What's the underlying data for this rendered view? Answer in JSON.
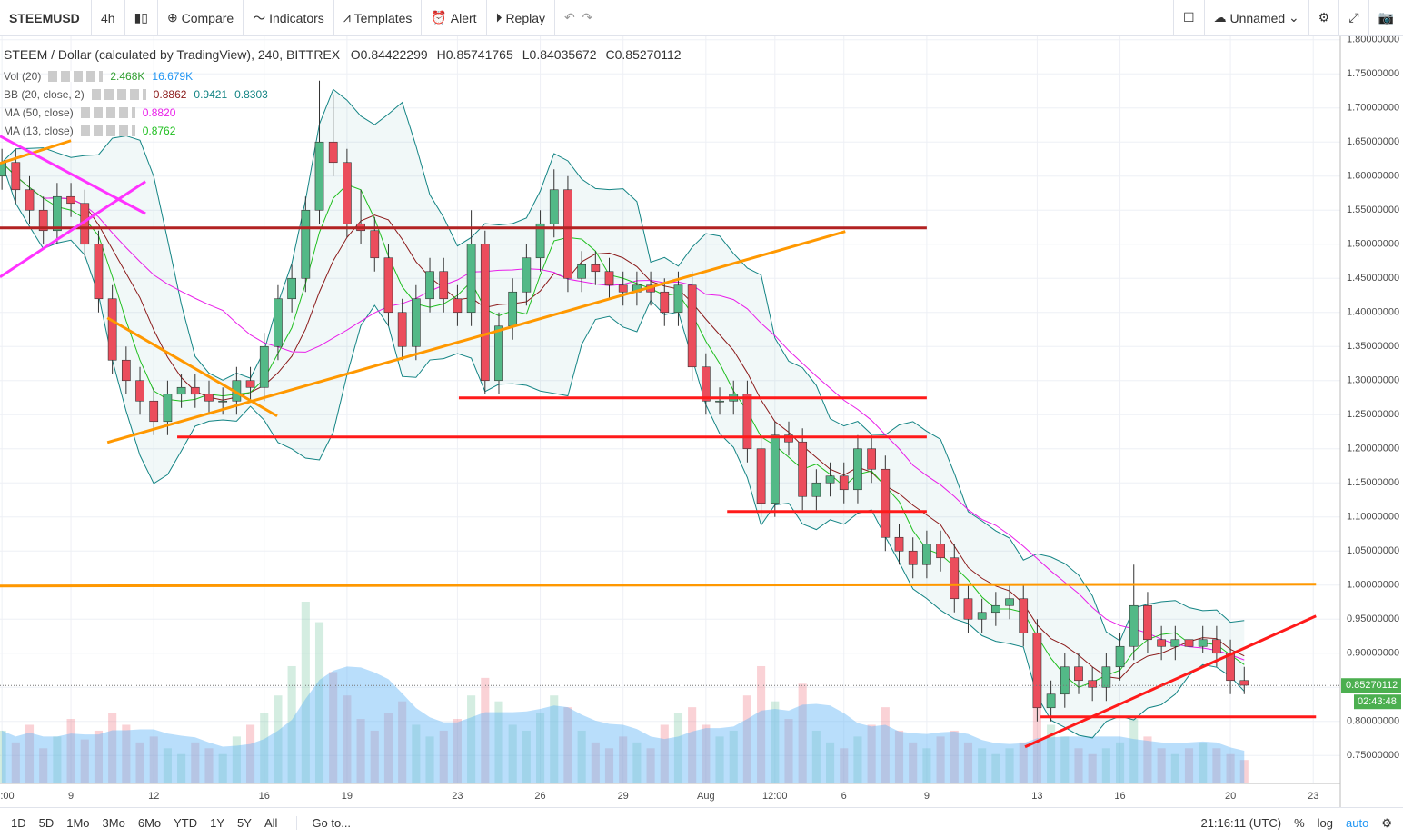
{
  "toolbar": {
    "symbol": "STEEMUSD",
    "interval": "4h",
    "buttons": [
      "Compare",
      "Indicators",
      "Templates",
      "Alert",
      "Replay"
    ],
    "layout_name": "Unnamed"
  },
  "legend": {
    "title": "STEEM / Dollar (calculated by TradingView), 240, BITTREX",
    "ohlc": [
      {
        "label": "O",
        "value": 0.84422299
      },
      {
        "label": "H",
        "value": 0.85741765
      },
      {
        "label": "L",
        "value": 0.84035672
      },
      {
        "label": "C",
        "value": 0.85270112
      }
    ],
    "indicators": [
      {
        "name": "Vol (20)",
        "values": [
          "2.468K",
          "16.679K"
        ],
        "colors": [
          "#2e9e2e",
          "#2196f3"
        ]
      },
      {
        "name": "BB (20, close, 2)",
        "values": [
          0.8862,
          0.9421,
          0.8303
        ],
        "colors": [
          "#8b1a1a",
          "#138484",
          "#138484"
        ]
      },
      {
        "name": "MA (50, close)",
        "values": [
          "0.8820"
        ],
        "colors": [
          "#e91ee9"
        ]
      },
      {
        "name": "MA (13, close)",
        "values": [
          0.8762
        ],
        "colors": [
          "#1fbf1f"
        ]
      }
    ]
  },
  "chart_data": {
    "type": "candlestick",
    "x": [
      6.5,
      7,
      7.5,
      8,
      8.5,
      9,
      9.5,
      10,
      10.5,
      11,
      11.5,
      12,
      12.5,
      13,
      13.5,
      14,
      14.5,
      15,
      15.5,
      16,
      16.5,
      17,
      17.5,
      18,
      18.5,
      19,
      19.5,
      20,
      20.5,
      21,
      21.5,
      22,
      22.5,
      23,
      23.5,
      24,
      24.5,
      25,
      25.5,
      26,
      26.5,
      27,
      27.5,
      28,
      28.5,
      29,
      29.5,
      30,
      30.5,
      31,
      31.5,
      32,
      32.5,
      33,
      33.5,
      34,
      34.5,
      35,
      35.5,
      36,
      36.5,
      37,
      37.5,
      38,
      38.5,
      39,
      39.5,
      40,
      40.5,
      41,
      41.5,
      42,
      42.5,
      43,
      43.5,
      44,
      44.5,
      45,
      45.5,
      46,
      46.5,
      47,
      47.5,
      48,
      48.5,
      49,
      49.5,
      50,
      50.5,
      51,
      51.5
    ],
    "open": [
      1.6,
      1.62,
      1.58,
      1.55,
      1.52,
      1.57,
      1.56,
      1.5,
      1.42,
      1.33,
      1.3,
      1.27,
      1.24,
      1.28,
      1.29,
      1.28,
      1.27,
      1.27,
      1.3,
      1.29,
      1.35,
      1.42,
      1.45,
      1.55,
      1.65,
      1.62,
      1.53,
      1.52,
      1.48,
      1.4,
      1.35,
      1.42,
      1.46,
      1.42,
      1.4,
      1.5,
      1.3,
      1.38,
      1.43,
      1.48,
      1.53,
      1.58,
      1.45,
      1.47,
      1.46,
      1.44,
      1.43,
      1.44,
      1.43,
      1.4,
      1.44,
      1.32,
      1.27,
      1.27,
      1.28,
      1.2,
      1.12,
      1.22,
      1.21,
      1.13,
      1.15,
      1.16,
      1.14,
      1.2,
      1.17,
      1.07,
      1.05,
      1.03,
      1.06,
      1.04,
      0.98,
      0.95,
      0.96,
      0.97,
      0.98,
      0.93,
      0.82,
      0.84,
      0.88,
      0.86,
      0.85,
      0.88,
      0.91,
      0.97,
      0.92,
      0.91,
      0.92,
      0.91,
      0.92,
      0.9,
      0.86
    ],
    "high": [
      1.64,
      1.64,
      1.6,
      1.57,
      1.59,
      1.59,
      1.58,
      1.52,
      1.44,
      1.35,
      1.32,
      1.29,
      1.3,
      1.31,
      1.31,
      1.3,
      1.29,
      1.32,
      1.32,
      1.37,
      1.44,
      1.47,
      1.57,
      1.74,
      1.72,
      1.64,
      1.58,
      1.54,
      1.5,
      1.42,
      1.44,
      1.48,
      1.48,
      1.44,
      1.55,
      1.52,
      1.4,
      1.45,
      1.5,
      1.55,
      1.61,
      1.6,
      1.49,
      1.49,
      1.48,
      1.46,
      1.46,
      1.46,
      1.45,
      1.46,
      1.46,
      1.34,
      1.29,
      1.3,
      1.3,
      1.22,
      1.24,
      1.24,
      1.23,
      1.17,
      1.18,
      1.18,
      1.22,
      1.22,
      1.19,
      1.09,
      1.07,
      1.08,
      1.08,
      1.06,
      1.0,
      0.98,
      0.99,
      1.0,
      1.0,
      0.95,
      0.86,
      0.9,
      0.9,
      0.88,
      0.9,
      0.93,
      1.03,
      0.99,
      0.94,
      0.94,
      0.95,
      0.94,
      0.94,
      0.92,
      0.88
    ],
    "low": [
      1.58,
      1.56,
      1.53,
      1.5,
      1.5,
      1.54,
      1.48,
      1.4,
      1.31,
      1.28,
      1.25,
      1.22,
      1.22,
      1.26,
      1.26,
      1.25,
      1.25,
      1.25,
      1.27,
      1.27,
      1.33,
      1.4,
      1.43,
      1.53,
      1.6,
      1.51,
      1.5,
      1.46,
      1.38,
      1.33,
      1.33,
      1.4,
      1.4,
      1.38,
      1.38,
      1.28,
      1.28,
      1.36,
      1.41,
      1.46,
      1.51,
      1.43,
      1.43,
      1.44,
      1.42,
      1.41,
      1.41,
      1.41,
      1.38,
      1.38,
      1.3,
      1.25,
      1.25,
      1.25,
      1.18,
      1.1,
      1.1,
      1.19,
      1.11,
      1.11,
      1.13,
      1.12,
      1.12,
      1.15,
      1.05,
      1.03,
      1.01,
      1.01,
      1.02,
      0.96,
      0.93,
      0.93,
      0.94,
      0.95,
      0.91,
      0.8,
      0.8,
      0.82,
      0.84,
      0.83,
      0.83,
      0.86,
      0.89,
      0.9,
      0.89,
      0.89,
      0.89,
      0.9,
      0.88,
      0.84,
      0.84
    ],
    "close": [
      1.62,
      1.58,
      1.55,
      1.52,
      1.57,
      1.56,
      1.5,
      1.42,
      1.33,
      1.3,
      1.27,
      1.24,
      1.28,
      1.29,
      1.28,
      1.27,
      1.27,
      1.3,
      1.29,
      1.35,
      1.42,
      1.45,
      1.55,
      1.65,
      1.62,
      1.53,
      1.52,
      1.48,
      1.4,
      1.35,
      1.42,
      1.46,
      1.42,
      1.4,
      1.5,
      1.3,
      1.38,
      1.43,
      1.48,
      1.53,
      1.58,
      1.45,
      1.47,
      1.46,
      1.44,
      1.43,
      1.44,
      1.43,
      1.4,
      1.44,
      1.32,
      1.27,
      1.27,
      1.28,
      1.2,
      1.12,
      1.22,
      1.21,
      1.13,
      1.15,
      1.16,
      1.14,
      1.2,
      1.17,
      1.07,
      1.05,
      1.03,
      1.06,
      1.04,
      0.98,
      0.95,
      0.96,
      0.97,
      0.98,
      0.93,
      0.82,
      0.84,
      0.88,
      0.86,
      0.85,
      0.88,
      0.91,
      0.97,
      0.92,
      0.91,
      0.92,
      0.91,
      0.92,
      0.9,
      0.86,
      0.853
    ],
    "volume": [
      18,
      14,
      20,
      12,
      16,
      22,
      15,
      18,
      24,
      20,
      14,
      16,
      12,
      10,
      14,
      12,
      10,
      16,
      20,
      24,
      30,
      40,
      62,
      55,
      38,
      30,
      22,
      18,
      24,
      28,
      20,
      16,
      18,
      22,
      30,
      36,
      28,
      20,
      18,
      24,
      30,
      26,
      18,
      14,
      12,
      16,
      14,
      12,
      20,
      24,
      26,
      20,
      16,
      18,
      30,
      40,
      28,
      22,
      34,
      18,
      14,
      12,
      16,
      20,
      26,
      18,
      14,
      12,
      16,
      18,
      14,
      12,
      10,
      12,
      14,
      28,
      20,
      16,
      12,
      10,
      12,
      14,
      22,
      16,
      12,
      10,
      12,
      14,
      12,
      10,
      8
    ],
    "xlim": [
      6.43,
      54.98
    ],
    "xticks": [
      {
        "value": 6.5,
        "label": ":00"
      },
      9,
      12,
      16,
      19,
      23,
      26,
      29,
      {
        "value": 32,
        "label": "Aug"
      },
      {
        "value": 34.5,
        "label": "12:00"
      },
      {
        "value": 37,
        "label": "6"
      },
      {
        "value": 40,
        "label": "9"
      },
      {
        "value": 44,
        "label": "13"
      },
      {
        "value": 47,
        "label": "16"
      },
      {
        "value": 51,
        "label": "20"
      },
      {
        "value": 54,
        "label": "23"
      }
    ],
    "ylim": [
      0.709,
      1.805
    ],
    "yticks": [
      {
        "value": 0.75,
        "label": "0.75000000"
      },
      {
        "value": 0.8,
        "label": "0.80000000"
      },
      {
        "value": 0.85,
        "label": "0.85000000"
      },
      {
        "value": 0.9,
        "label": "0.90000000"
      },
      {
        "value": 0.95,
        "label": "0.95000000"
      },
      {
        "value": 1,
        "label": "1.00000000"
      },
      {
        "value": 1.05,
        "label": "1.05000000"
      },
      {
        "value": 1.1,
        "label": "1.10000000"
      },
      {
        "value": 1.15,
        "label": "1.15000000"
      },
      {
        "value": 1.2,
        "label": "1.20000000"
      },
      {
        "value": 1.25,
        "label": "1.25000000"
      },
      {
        "value": 1.3,
        "label": "1.30000000"
      },
      {
        "value": 1.35,
        "label": "1.35000000"
      },
      {
        "value": 1.4,
        "label": "1.40000000"
      },
      {
        "value": 1.45,
        "label": "1.45000000"
      },
      {
        "value": 1.5,
        "label": "1.50000000"
      },
      {
        "value": 1.55,
        "label": "1.55000000"
      },
      {
        "value": 1.6,
        "label": "1.60000000"
      },
      {
        "value": 1.65,
        "label": "1.65000000"
      },
      {
        "value": 1.7,
        "label": "1.70000000"
      },
      {
        "value": 1.75,
        "label": "1.75000000"
      },
      {
        "value": 1.8,
        "label": "1.80000000"
      }
    ],
    "grid": true,
    "up_color": "#53b987",
    "down_color": "#eb4d5c",
    "last_price": 0.85270112,
    "countdown": "02:43:48",
    "drawings": [
      {
        "color": "#b22222",
        "points": [
          [
            6.43,
            1.524
          ],
          [
            40,
            1.524
          ]
        ]
      },
      {
        "color": "#ff1a1a",
        "points": [
          [
            23.05,
            1.2747
          ],
          [
            40,
            1.2747
          ]
        ]
      },
      {
        "color": "#ff1a1a",
        "points": [
          [
            12.85,
            1.2173
          ],
          [
            40,
            1.2173
          ]
        ]
      },
      {
        "color": "#ff1a1a",
        "points": [
          [
            32.77,
            1.108
          ],
          [
            40,
            1.108
          ]
        ]
      },
      {
        "color": "#ff1a1a",
        "points": [
          [
            44.12,
            0.8067
          ],
          [
            54.1,
            0.8067
          ]
        ]
      },
      {
        "color": "#ff1a1a",
        "points": [
          [
            43.56,
            0.7627
          ],
          [
            54.1,
            0.9547
          ]
        ]
      },
      {
        "color": "#ff9800",
        "points": [
          [
            6.43,
            0.9987
          ],
          [
            54.1,
            1.0013
          ]
        ]
      },
      {
        "color": "#ff9800",
        "points": [
          [
            10.32,
            1.2093
          ],
          [
            37.05,
            1.5187
          ]
        ]
      },
      {
        "color": "#ff9800",
        "points": [
          [
            6.43,
            1.6187
          ],
          [
            9,
            1.652
          ]
        ]
      },
      {
        "color": "#ff9800",
        "points": [
          [
            10.32,
            1.392
          ],
          [
            16.47,
            1.248
          ]
        ]
      },
      {
        "color": "#ff33ff",
        "points": [
          [
            6.43,
            1.6587
          ],
          [
            11.7,
            1.545
          ]
        ]
      },
      {
        "color": "#ff33ff",
        "points": [
          [
            6.43,
            1.452
          ],
          [
            11.7,
            1.592
          ]
        ]
      }
    ]
  },
  "bottom_bar": {
    "ranges": [
      "1D",
      "5D",
      "1Mo",
      "3Mo",
      "6Mo",
      "YTD",
      "1Y",
      "5Y",
      "All"
    ],
    "goto": "Go to...",
    "clock": "21:16:11 (UTC)",
    "options": [
      "%",
      "log",
      "auto"
    ]
  }
}
